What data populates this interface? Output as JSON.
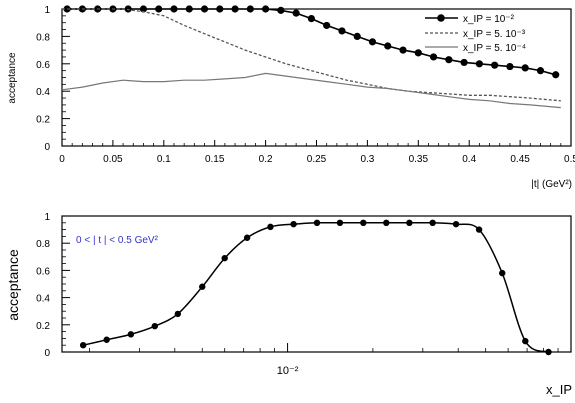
{
  "chart_data": [
    {
      "type": "line",
      "ylabel": "acceptance",
      "xlabel": "|t| (GeV²)",
      "xlim": [
        0,
        0.5
      ],
      "ylim": [
        0,
        1
      ],
      "xticks": [
        "0",
        "0.05",
        "0.1",
        "0.15",
        "0.2",
        "0.25",
        "0.3",
        "0.35",
        "0.4",
        "0.45",
        "0.5"
      ],
      "yticks": [
        "0",
        "0.2",
        "0.4",
        "0.6",
        "0.8",
        "1"
      ],
      "legend_position": "top-right",
      "grid": false,
      "series": [
        {
          "name": "x_IP = 10⁻²",
          "style": "solid-markers",
          "x": [
            0.005,
            0.02,
            0.035,
            0.05,
            0.065,
            0.08,
            0.095,
            0.11,
            0.125,
            0.14,
            0.155,
            0.17,
            0.185,
            0.2,
            0.215,
            0.23,
            0.245,
            0.26,
            0.275,
            0.29,
            0.305,
            0.32,
            0.335,
            0.35,
            0.365,
            0.38,
            0.395,
            0.41,
            0.425,
            0.44,
            0.455,
            0.47,
            0.485
          ],
          "y": [
            1.0,
            1.0,
            1.0,
            1.0,
            1.0,
            1.0,
            1.0,
            1.0,
            1.0,
            1.0,
            1.0,
            1.0,
            1.0,
            1.0,
            0.99,
            0.97,
            0.93,
            0.88,
            0.84,
            0.8,
            0.76,
            0.73,
            0.7,
            0.68,
            0.65,
            0.63,
            0.61,
            0.6,
            0.59,
            0.58,
            0.57,
            0.55,
            0.52
          ]
        },
        {
          "name": "x_IP = 5. 10⁻³",
          "style": "dashed",
          "x": [
            0,
            0.02,
            0.04,
            0.06,
            0.08,
            0.1,
            0.12,
            0.14,
            0.16,
            0.18,
            0.2,
            0.22,
            0.24,
            0.26,
            0.28,
            0.3,
            0.32,
            0.34,
            0.36,
            0.38,
            0.4,
            0.42,
            0.44,
            0.46,
            0.49
          ],
          "y": [
            1.0,
            1.0,
            1.0,
            1.0,
            0.98,
            0.95,
            0.88,
            0.82,
            0.76,
            0.7,
            0.65,
            0.6,
            0.56,
            0.52,
            0.48,
            0.45,
            0.42,
            0.4,
            0.39,
            0.38,
            0.37,
            0.37,
            0.36,
            0.35,
            0.33
          ]
        },
        {
          "name": "x_IP = 5. 10⁻⁴",
          "style": "solid",
          "x": [
            0,
            0.02,
            0.04,
            0.06,
            0.08,
            0.1,
            0.12,
            0.14,
            0.16,
            0.18,
            0.2,
            0.22,
            0.24,
            0.26,
            0.28,
            0.3,
            0.32,
            0.34,
            0.36,
            0.38,
            0.4,
            0.42,
            0.44,
            0.46,
            0.49
          ],
          "y": [
            0.41,
            0.43,
            0.46,
            0.48,
            0.47,
            0.47,
            0.48,
            0.48,
            0.49,
            0.5,
            0.53,
            0.51,
            0.49,
            0.47,
            0.45,
            0.43,
            0.42,
            0.4,
            0.38,
            0.36,
            0.34,
            0.33,
            0.31,
            0.3,
            0.28
          ]
        }
      ]
    },
    {
      "type": "line",
      "ylabel": "acceptance",
      "xlabel": "x_IP",
      "xscale": "log",
      "xlim": [
        0.0016,
        0.1
      ],
      "ylim": [
        0,
        1
      ],
      "xticks": [
        "10⁻²"
      ],
      "yticks": [
        "0",
        "0.2",
        "0.4",
        "0.6",
        "0.8",
        "1"
      ],
      "annotation": "0 < | t | < 0.5 GeV²",
      "grid": false,
      "series": [
        {
          "name": "",
          "style": "solid-markers",
          "x": [
            0.0019,
            0.0023,
            0.0028,
            0.0034,
            0.0041,
            0.005,
            0.006,
            0.0072,
            0.0087,
            0.0105,
            0.0127,
            0.0153,
            0.0185,
            0.0223,
            0.0269,
            0.0325,
            0.0393,
            0.0474,
            0.0572,
            0.069,
            0.0833
          ],
          "y": [
            0.05,
            0.09,
            0.13,
            0.19,
            0.28,
            0.48,
            0.69,
            0.84,
            0.92,
            0.94,
            0.95,
            0.95,
            0.95,
            0.95,
            0.95,
            0.95,
            0.94,
            0.9,
            0.58,
            0.08,
            0.0
          ],
          "markers_at": [
            0.0019,
            0.0023,
            0.0028,
            0.0034,
            0.0041,
            0.005,
            0.006,
            0.0072,
            0.0087,
            0.0105,
            0.0127,
            0.0153,
            0.0185,
            0.0223,
            0.0269,
            0.0325,
            0.0393,
            0.0474,
            0.0572,
            0.069,
            0.0833
          ]
        }
      ]
    }
  ]
}
